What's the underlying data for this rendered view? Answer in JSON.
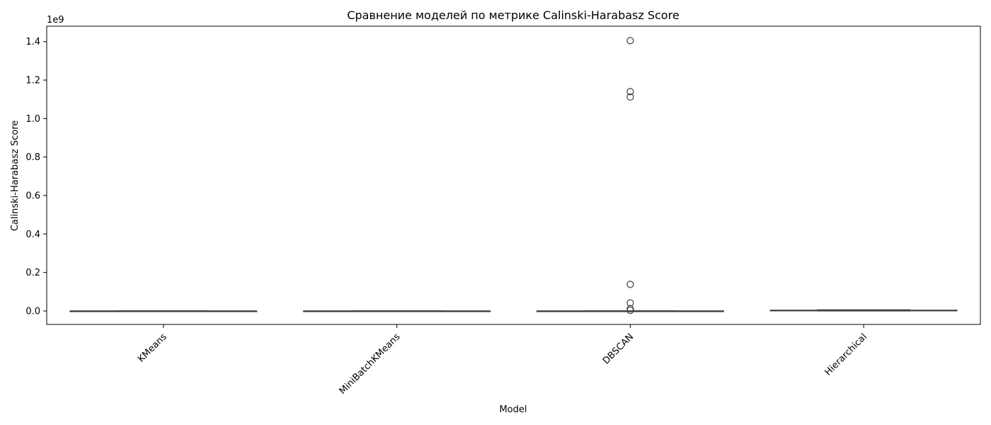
{
  "chart_data": {
    "type": "box",
    "title": "Сравнение моделей по метрике Calinski-Harabasz Score",
    "xlabel": "Model",
    "ylabel": "Calinski-Harabasz Score",
    "y_offset_label": "1e9",
    "ylim": [
      -0.07,
      1.48
    ],
    "y_ticks": [
      0.0,
      0.2,
      0.4,
      0.6,
      0.8,
      1.0,
      1.2,
      1.4
    ],
    "y_tick_labels": [
      "0.0",
      "0.2",
      "0.4",
      "0.6",
      "0.8",
      "1.0",
      "1.2",
      "1.4"
    ],
    "categories": [
      "KMeans",
      "MiniBatchKMeans",
      "DBSCAN",
      "Hierarchical"
    ],
    "x_tick_rotation_deg": 45,
    "box_color": "#3f3f3f",
    "grid": false,
    "boxes": [
      {
        "category": "KMeans",
        "whisker_low": 0.0,
        "q1": 0.0,
        "median": 0.0,
        "q3": 0.0,
        "whisker_high": 0.0,
        "outliers": []
      },
      {
        "category": "MiniBatchKMeans",
        "whisker_low": 0.0,
        "q1": 0.0,
        "median": 0.0,
        "q3": 0.0,
        "whisker_high": 0.0,
        "outliers": []
      },
      {
        "category": "DBSCAN",
        "whisker_low": 0.0,
        "q1": 0.0,
        "median": 0.0,
        "q3": 0.0,
        "whisker_high": 0.0,
        "outliers": [
          1.405,
          1.14,
          1.112,
          0.138,
          0.042,
          0.012,
          0.003
        ]
      },
      {
        "category": "Hierarchical",
        "whisker_low": 0.0,
        "q1": 0.002,
        "median": 0.003,
        "q3": 0.004,
        "whisker_high": 0.006,
        "outliers": []
      }
    ]
  }
}
